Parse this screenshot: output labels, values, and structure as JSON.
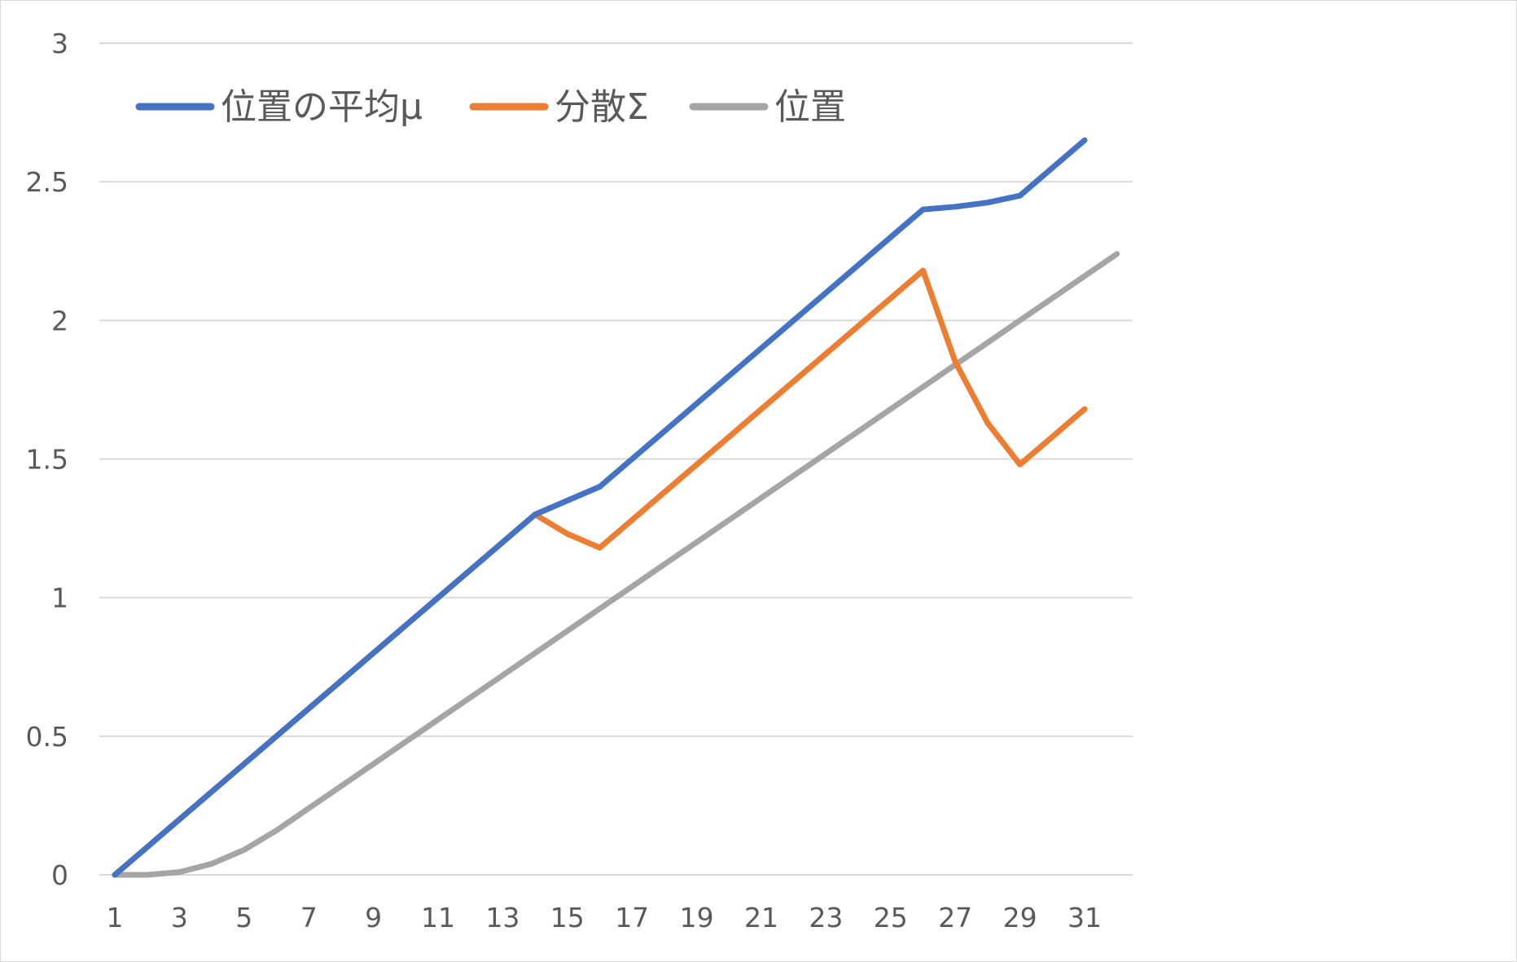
{
  "chart_data": {
    "type": "line",
    "title": "",
    "xlabel": "",
    "ylabel": "",
    "x": [
      1,
      2,
      3,
      4,
      5,
      6,
      7,
      8,
      9,
      10,
      11,
      12,
      13,
      14,
      15,
      16,
      17,
      18,
      19,
      20,
      21,
      22,
      23,
      24,
      25,
      26,
      27,
      28,
      29,
      30,
      31,
      32
    ],
    "x_tick_labels": [
      "1",
      "3",
      "5",
      "7",
      "9",
      "11",
      "13",
      "15",
      "17",
      "19",
      "21",
      "23",
      "25",
      "27",
      "29",
      "31"
    ],
    "y_tick_labels": [
      "0",
      "0.5",
      "1",
      "1.5",
      "2",
      "2.5",
      "3"
    ],
    "ylim": [
      0,
      3
    ],
    "grid": "horizontal",
    "legend_position": "top-left",
    "series": [
      {
        "name": "位置の平均μ",
        "color": "#4472c4",
        "values": [
          0,
          0.1,
          0.2,
          0.3,
          0.4,
          0.5,
          0.6,
          0.7,
          0.8,
          0.9,
          1.0,
          1.1,
          1.2,
          1.3,
          1.35,
          1.4,
          1.5,
          1.6,
          1.7,
          1.8,
          1.9,
          2.0,
          2.1,
          2.2,
          2.3,
          2.4,
          2.41,
          2.425,
          2.45,
          2.55,
          2.65,
          null
        ]
      },
      {
        "name": "分散Σ",
        "color": "#ed7d31",
        "values": [
          0,
          0.1,
          0.2,
          0.3,
          0.4,
          0.5,
          0.6,
          0.7,
          0.8,
          0.9,
          1.0,
          1.1,
          1.2,
          1.3,
          1.23,
          1.18,
          1.28,
          1.38,
          1.48,
          1.58,
          1.68,
          1.78,
          1.88,
          1.98,
          2.08,
          2.18,
          1.85,
          1.63,
          1.48,
          1.58,
          1.68,
          null
        ]
      },
      {
        "name": "位置",
        "color": "#a5a5a5",
        "values": [
          0,
          0,
          0.01,
          0.04,
          0.09,
          0.16,
          0.24,
          0.32,
          0.4,
          0.48,
          0.56,
          0.64,
          0.72,
          0.8,
          0.88,
          0.96,
          1.04,
          1.12,
          1.2,
          1.28,
          1.36,
          1.44,
          1.52,
          1.6,
          1.68,
          1.76,
          1.84,
          1.92,
          2.0,
          2.08,
          2.16,
          2.24
        ]
      }
    ]
  },
  "colors": {
    "gridline": "#d9d9d9",
    "tick_text": "#595959",
    "legend_text": "#595959"
  }
}
